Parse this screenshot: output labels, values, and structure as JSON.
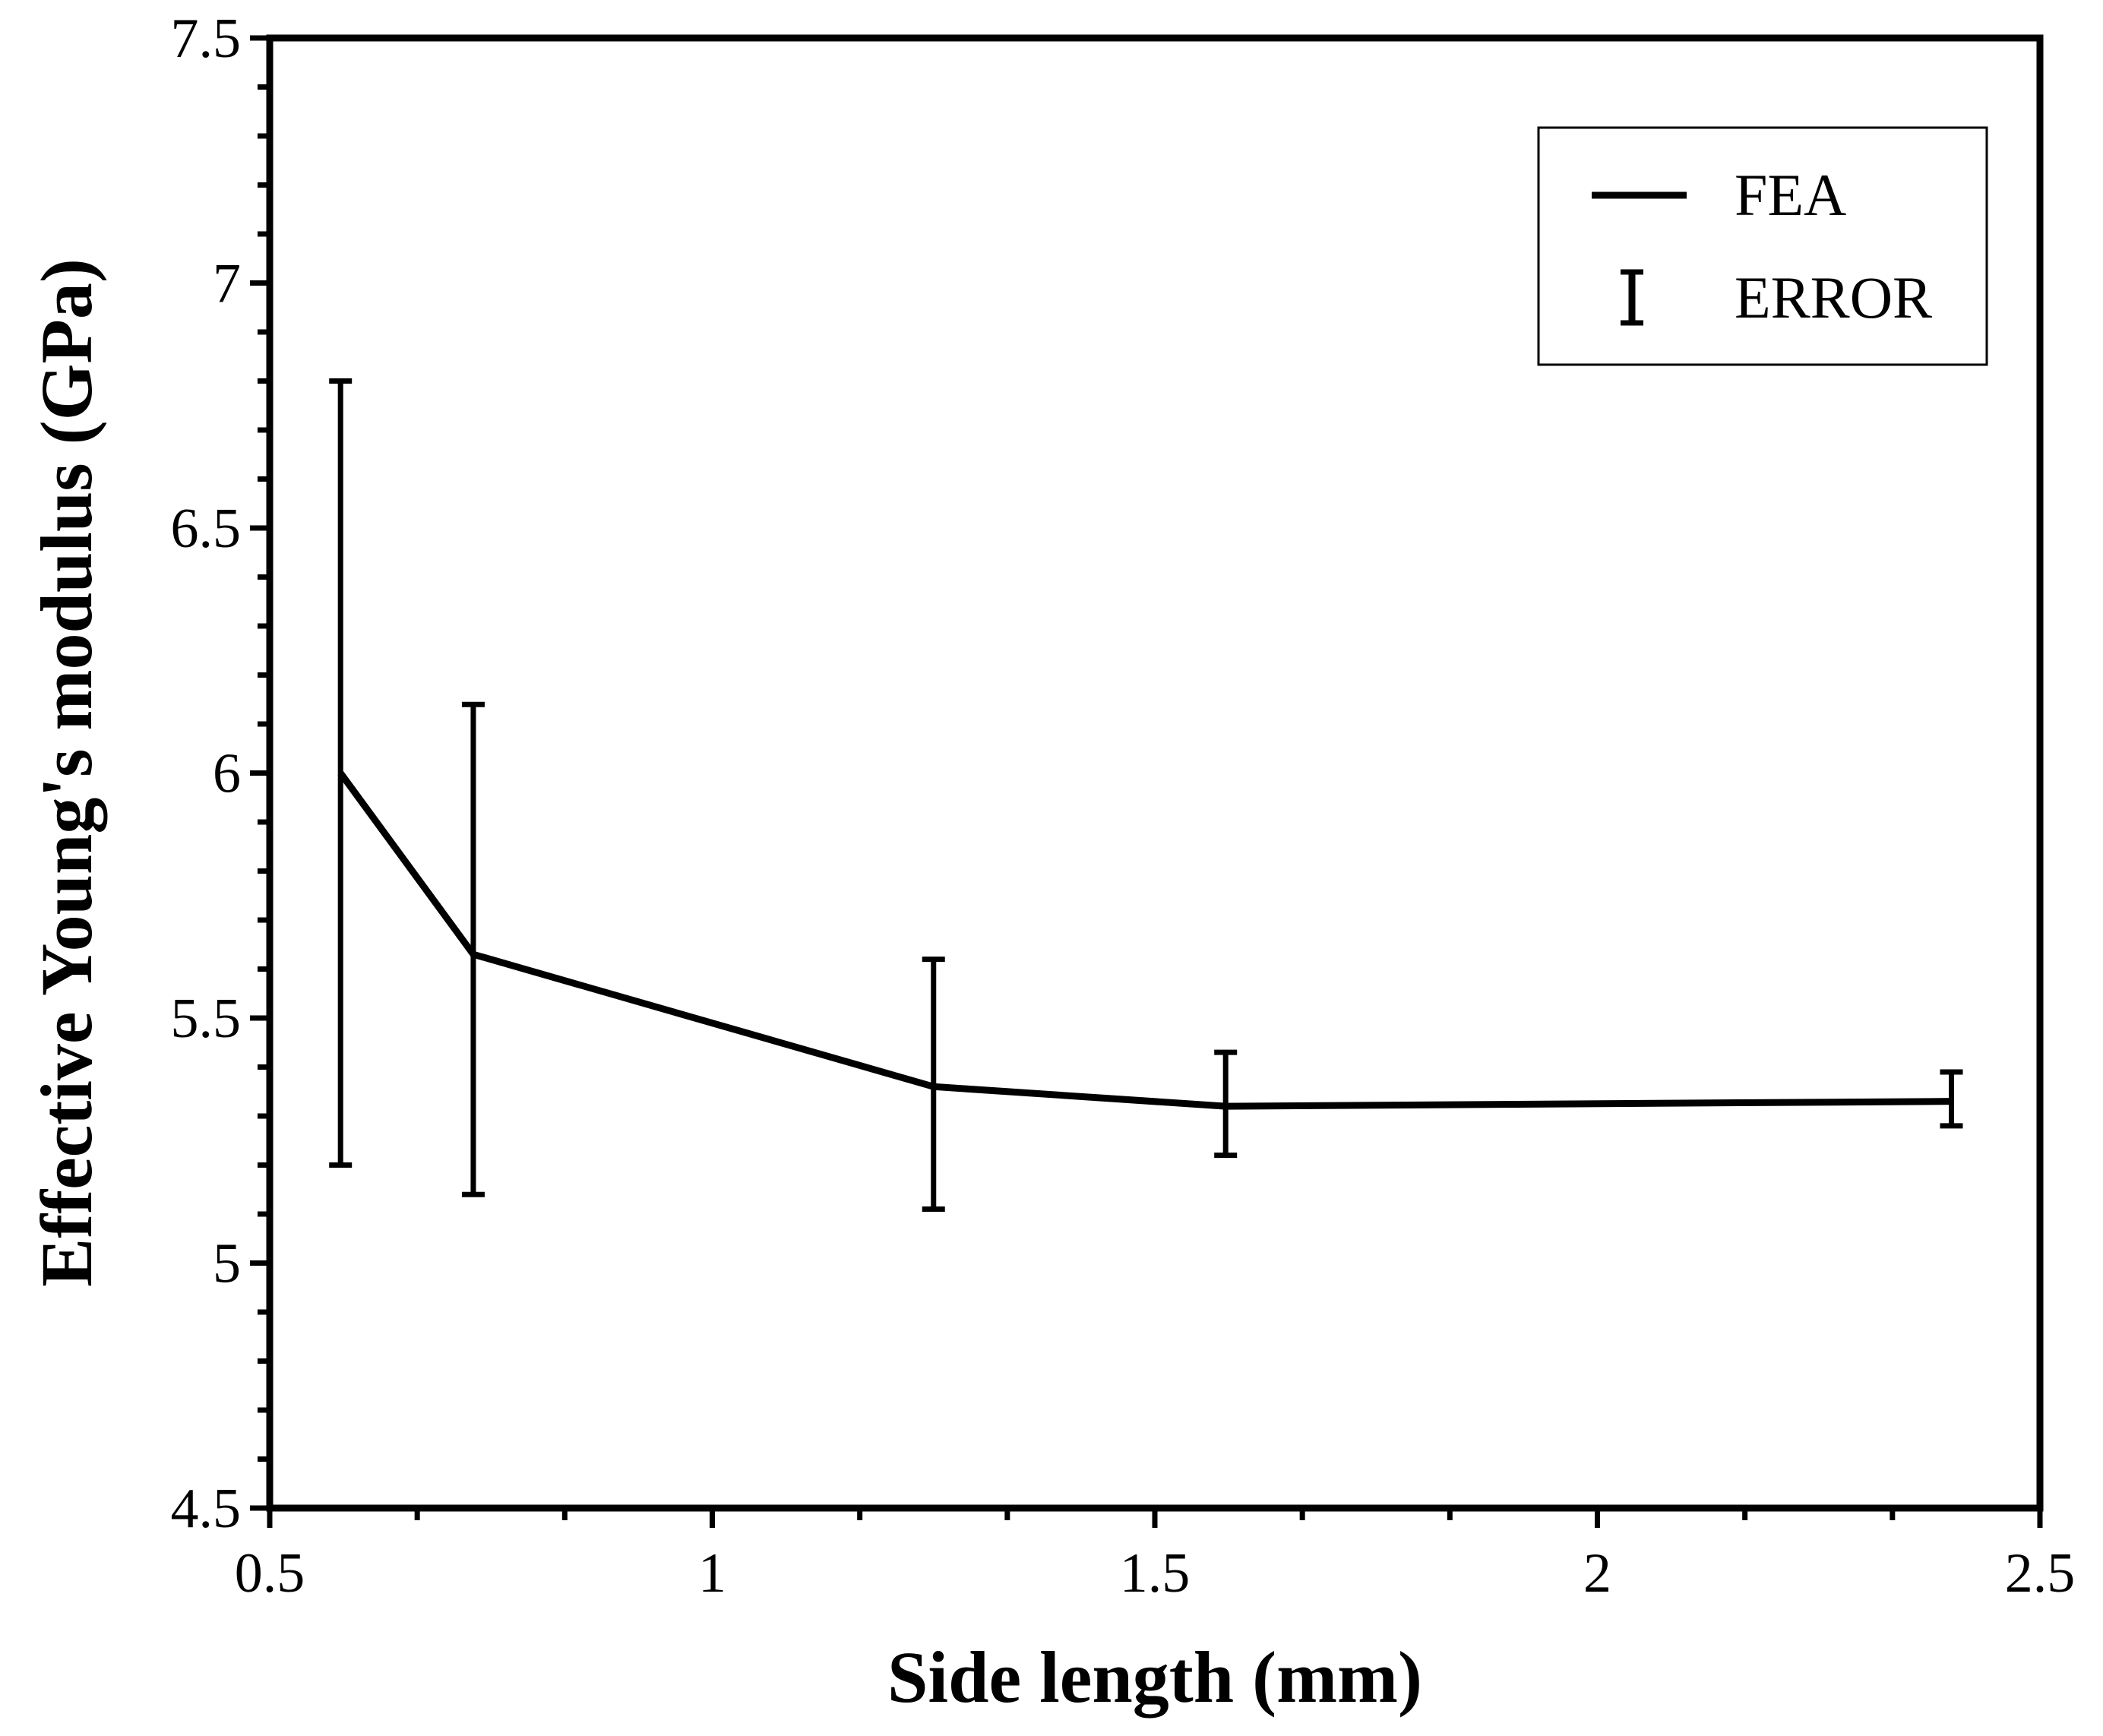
{
  "chart_data": {
    "type": "line",
    "title": "",
    "xlabel": "Side length (mm)",
    "ylabel": "Effective Young's modulus (GPa)",
    "xlim": [
      0.5,
      2.5
    ],
    "ylim": [
      4.5,
      7.5
    ],
    "xticks": [
      "0.5",
      "1",
      "1.5",
      "2",
      "2.5"
    ],
    "yticks": [
      "4.5",
      "5",
      "5.5",
      "6",
      "6.5",
      "7",
      "7.5"
    ],
    "x_minor_step": 0.1667,
    "y_minor_step": 0.1,
    "grid": false,
    "legend_position": "top-right",
    "legend": {
      "line_label": "FEA",
      "error_label": "ERROR"
    },
    "series": [
      {
        "name": "FEA",
        "x": [
          0.58,
          0.73,
          1.25,
          1.58,
          2.4
        ],
        "y": [
          6.0,
          5.63,
          5.36,
          5.32,
          5.33
        ],
        "err_low": [
          5.2,
          5.14,
          5.11,
          5.22,
          5.28
        ],
        "err_high": [
          6.8,
          6.14,
          5.62,
          5.43,
          5.39
        ]
      }
    ],
    "colors": {
      "line": "#000000",
      "error": "#000000"
    }
  }
}
